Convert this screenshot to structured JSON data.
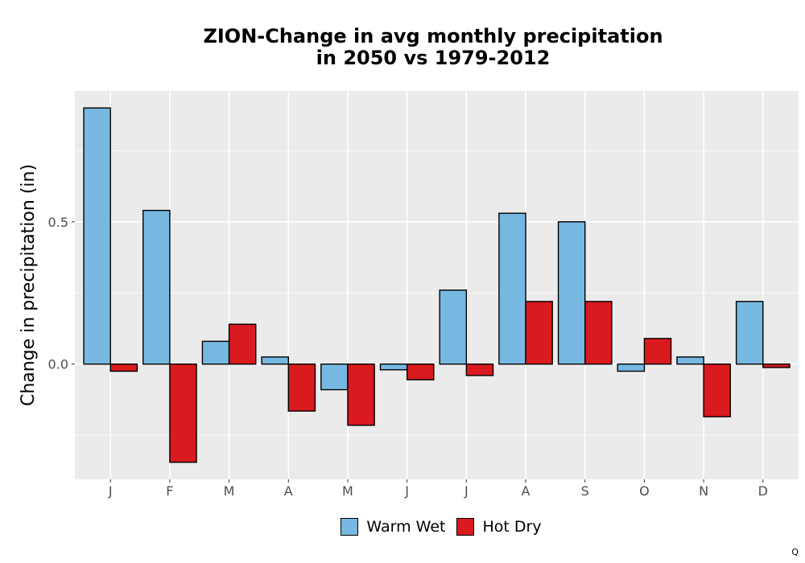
{
  "chart_data": {
    "type": "bar",
    "title_lines": [
      "ZION-Change in avg monthly precipitation",
      "in 2050 vs 1979-2012"
    ],
    "xlabel": "",
    "ylabel": "Change in precipitation (in)",
    "categories": [
      "J",
      "F",
      "M",
      "A",
      "M",
      "J",
      "J",
      "A",
      "S",
      "O",
      "N",
      "D"
    ],
    "series": [
      {
        "name": "Warm Wet",
        "color": "#77b8e1",
        "values": [
          0.9,
          0.54,
          0.08,
          0.025,
          -0.09,
          -0.02,
          0.26,
          0.53,
          0.5,
          -0.025,
          0.025,
          0.22
        ]
      },
      {
        "name": "Hot Dry",
        "color": "#d91a1e",
        "values": [
          -0.025,
          -0.345,
          0.14,
          -0.165,
          -0.215,
          -0.055,
          -0.04,
          0.22,
          0.22,
          0.09,
          -0.185,
          -0.012
        ]
      }
    ],
    "yticks": [
      0.0,
      0.5
    ],
    "ytick_labels": [
      "0.0",
      "0.5"
    ],
    "ylim": [
      -0.405,
      0.96
    ],
    "grid": true,
    "legend_position": "bottom",
    "panel_background": "#ebebeb"
  },
  "corner_mark": "Q"
}
